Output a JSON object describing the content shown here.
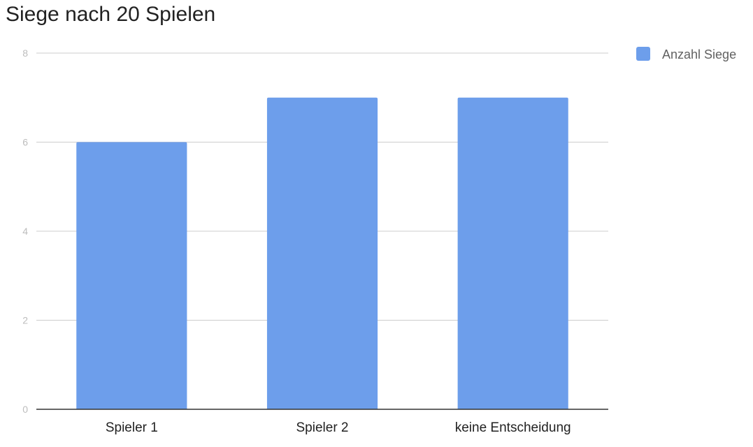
{
  "chart_data": {
    "type": "bar",
    "title": "Siege nach 20 Spielen",
    "categories": [
      "Spieler 1",
      "Spieler 2",
      "keine Entscheidung"
    ],
    "series": [
      {
        "name": "Anzahl Siege",
        "values": [
          6,
          7,
          7
        ],
        "color": "#6d9eeb"
      }
    ],
    "xlabel": "",
    "ylabel": "",
    "ylim": [
      0,
      8
    ],
    "yticks": [
      0,
      2,
      4,
      6,
      8
    ],
    "grid": true,
    "legend": "top-right"
  }
}
